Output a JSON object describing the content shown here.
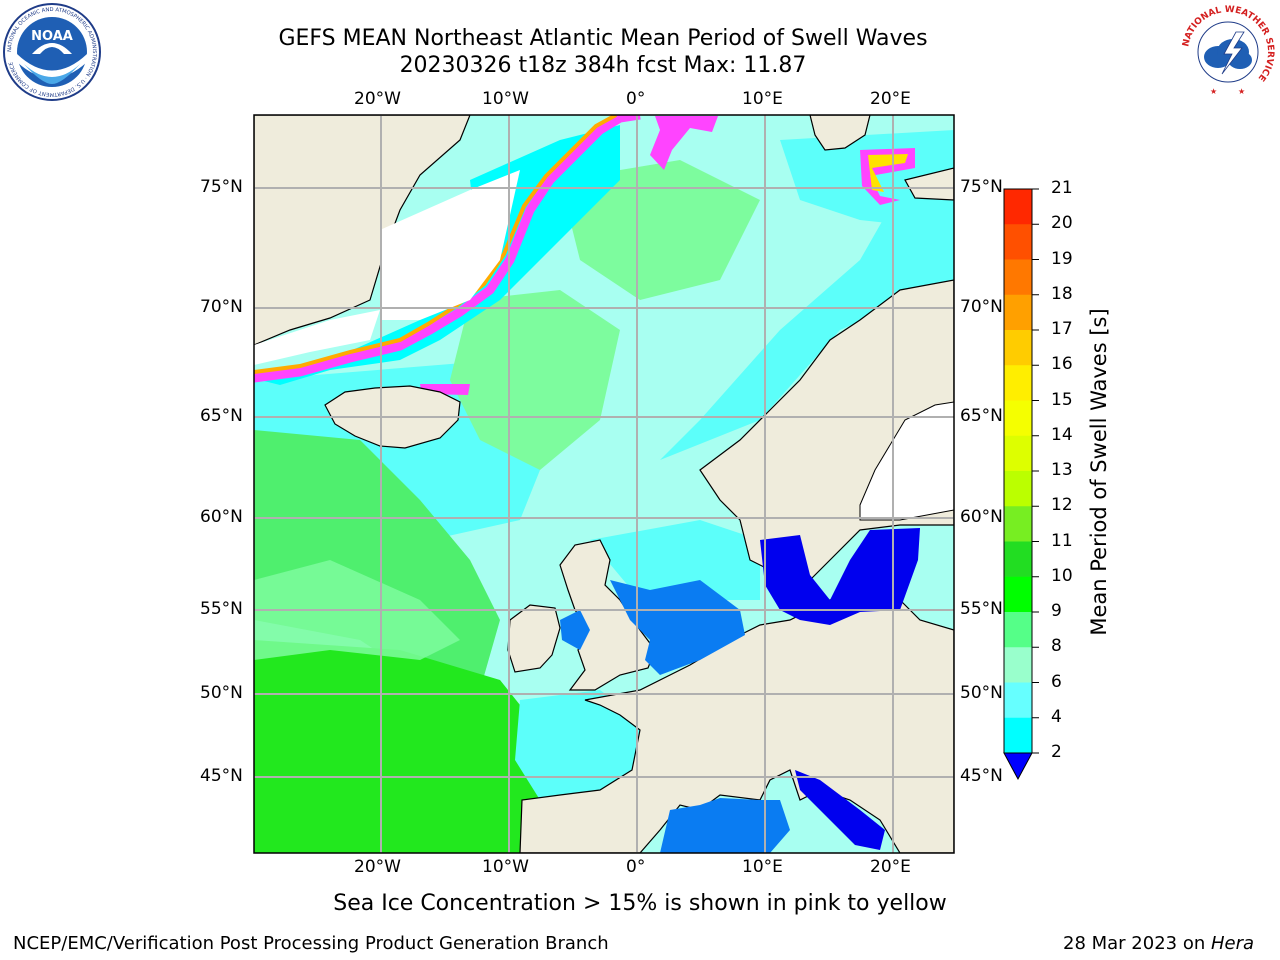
{
  "title": {
    "line1": "GEFS MEAN Northeast Atlantic Mean Period of Swell Waves",
    "line2": "20230326 t18z 384h fcst   Max: 11.87"
  },
  "map": {
    "lon_labels": [
      "20°W",
      "10°W",
      "0°",
      "10°E",
      "20°E"
    ],
    "lat_labels": [
      "75°N",
      "70°N",
      "65°N",
      "60°N",
      "55°N",
      "50°N",
      "45°N"
    ],
    "colors": {
      "land": "#efecdc",
      "grid": "#b0b0b0",
      "ocean_deep_green": "#22e81e",
      "ocean_green": "#4fef6e",
      "ocean_light_green": "#7dfc9e",
      "ocean_pale_cyan": "#a8fff1",
      "ocean_light_cyan": "#5cfffa",
      "ocean_cyan": "#00ffff",
      "shelf_blue": "#0a7cf2",
      "baltic_blue": "#0000ee",
      "ice_pink": "#ff44ff",
      "ice_orange": "#ffaa00",
      "ice_yellow": "#ffe200"
    }
  },
  "colorbar": {
    "label": "Mean Period of Swell Waves [s]",
    "ticks": [
      "21",
      "20",
      "19",
      "18",
      "17",
      "16",
      "15",
      "14",
      "13",
      "12",
      "11",
      "10",
      "9",
      "8",
      "6",
      "4",
      "2"
    ],
    "colors": [
      "#ff0000",
      "#ff2800",
      "#ff5000",
      "#ff7800",
      "#ffa000",
      "#ffcc00",
      "#ffee00",
      "#f5ff00",
      "#ddff00",
      "#bbff00",
      "#77ee22",
      "#22dd22",
      "#00ff00",
      "#55ff88",
      "#99ffcc",
      "#66ffff",
      "#00ffff",
      "#0077ff"
    ],
    "under_color": "#0000ff"
  },
  "footer": {
    "subtitle": "Sea Ice Concentration > 15% is shown in pink to yellow",
    "left": "NCEP/EMC/Verification Post Processing Product Generation Branch",
    "date": "28 Mar 2023 on ",
    "machine": "Hera"
  },
  "logos": {
    "noaa_text": "NOAA",
    "noaa_ring": "NATIONAL OCEANIC AND ATMOSPHERIC ADMINISTRATION · U.S. DEPARTMENT OF COMMERCE",
    "nws_ring": "NATIONAL WEATHER SERVICE"
  }
}
